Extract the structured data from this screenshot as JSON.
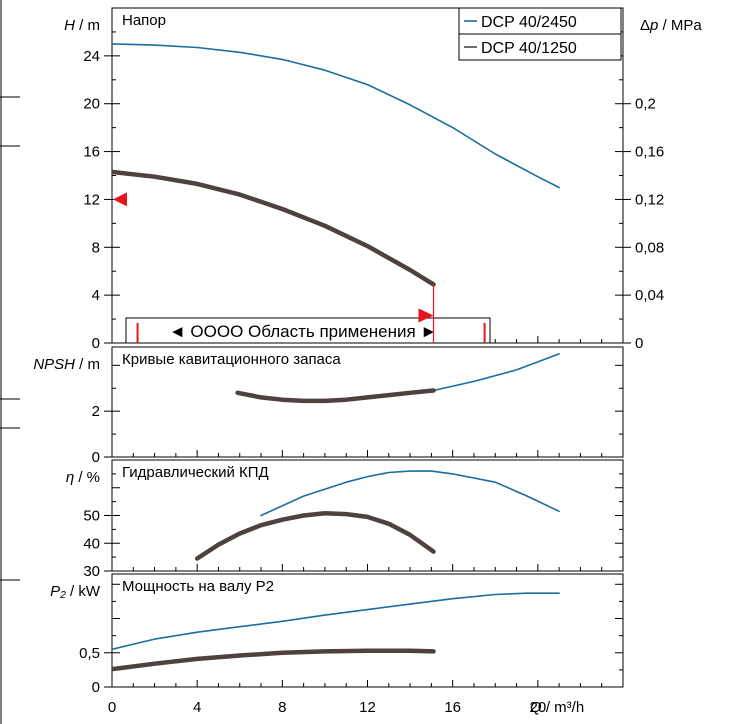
{
  "colors": {
    "series_a": "#1a6e9e",
    "series_b": "#4e4240",
    "range": "#e8141c",
    "axis": "#000000"
  },
  "chart_data": [
    {
      "type": "line",
      "panel": "head",
      "title": "Напор",
      "ylabel": "H / m",
      "ylabel_right": "Δp / MPa",
      "xlim": [
        0,
        24
      ],
      "ylim": [
        0,
        28
      ],
      "left_ticks": [
        "0",
        "4",
        "8",
        "12",
        "16",
        "20",
        "24"
      ],
      "right_ticks": [
        "0",
        "0,04",
        "0,08",
        "0,12",
        "0,16",
        "0,2"
      ],
      "legend": [
        "DCP 40/2450",
        "DCP 40/1250"
      ],
      "legend_position": "top-right",
      "range_label": "◄ OOOO Область применения ►",
      "range_q": [
        1.2,
        17.5
      ],
      "duty_marker_h": 12.0,
      "series": [
        {
          "name": "DCP 40/2450",
          "x": [
            0,
            2,
            4,
            6,
            8,
            10,
            12,
            14,
            16,
            18,
            20,
            21
          ],
          "y": [
            25.0,
            24.9,
            24.7,
            24.3,
            23.7,
            22.8,
            21.6,
            19.9,
            18.0,
            15.8,
            13.9,
            13.0
          ]
        },
        {
          "name": "DCP 40/1250",
          "x": [
            0,
            2,
            4,
            6,
            8,
            10,
            12,
            14,
            15.1
          ],
          "y": [
            14.3,
            13.9,
            13.3,
            12.4,
            11.2,
            9.8,
            8.1,
            6.1,
            4.9
          ]
        }
      ]
    },
    {
      "type": "line",
      "panel": "npsh",
      "title": "Кривые кавитационного запаса",
      "ylabel": "NPSH / m",
      "ylim": [
        0,
        4.8
      ],
      "left_ticks": [
        "0",
        "2"
      ],
      "series": [
        {
          "name": "DCP 40/2450",
          "x": [
            15.1,
            17,
            19,
            21
          ],
          "y": [
            2.9,
            3.3,
            3.8,
            4.5
          ]
        },
        {
          "name": "DCP 40/1250",
          "x": [
            5.9,
            7,
            8,
            9,
            10,
            11,
            12,
            13,
            14,
            15.1
          ],
          "y": [
            2.8,
            2.6,
            2.5,
            2.45,
            2.45,
            2.5,
            2.6,
            2.7,
            2.8,
            2.9
          ]
        }
      ]
    },
    {
      "type": "line",
      "panel": "efficiency",
      "title": "Гидравлический КПД",
      "ylabel": "η / %",
      "ylim": [
        30,
        70
      ],
      "left_ticks": [
        "30",
        "40",
        "50"
      ],
      "series": [
        {
          "name": "DCP 40/2450",
          "x": [
            7,
            9,
            11,
            12,
            13,
            14,
            15,
            16,
            18,
            19.5,
            21
          ],
          "y": [
            50.0,
            57.0,
            62.0,
            64.0,
            65.5,
            66.0,
            66.0,
            65.0,
            62.0,
            57.0,
            51.5
          ]
        },
        {
          "name": "DCP 40/1250",
          "x": [
            4,
            5,
            6,
            7,
            8,
            9,
            10,
            11,
            12,
            13,
            14,
            15.1
          ],
          "y": [
            34.5,
            39.5,
            43.5,
            46.5,
            48.5,
            50.0,
            50.8,
            50.5,
            49.5,
            47.0,
            43.0,
            37.0
          ]
        }
      ]
    },
    {
      "type": "line",
      "panel": "power",
      "title": "Мощность на валу P2",
      "ylabel": "P₂ / kW",
      "xlabel": "Q / m³/h",
      "ylim": [
        0,
        1.65
      ],
      "left_ticks": [
        "0",
        "0,5"
      ],
      "x_ticks": [
        "0",
        "4",
        "8",
        "12",
        "16",
        "20"
      ],
      "series": [
        {
          "name": "DCP 40/2450",
          "x": [
            0,
            2,
            4,
            6,
            8,
            10,
            12,
            14,
            16,
            18,
            19.5,
            21
          ],
          "y": [
            0.55,
            0.7,
            0.8,
            0.88,
            0.96,
            1.05,
            1.13,
            1.21,
            1.29,
            1.35,
            1.37,
            1.37
          ]
        },
        {
          "name": "DCP 40/1250",
          "x": [
            0,
            2,
            4,
            6,
            8,
            10,
            12,
            14,
            15.1
          ],
          "y": [
            0.26,
            0.34,
            0.41,
            0.46,
            0.5,
            0.52,
            0.53,
            0.53,
            0.52
          ]
        }
      ]
    }
  ]
}
